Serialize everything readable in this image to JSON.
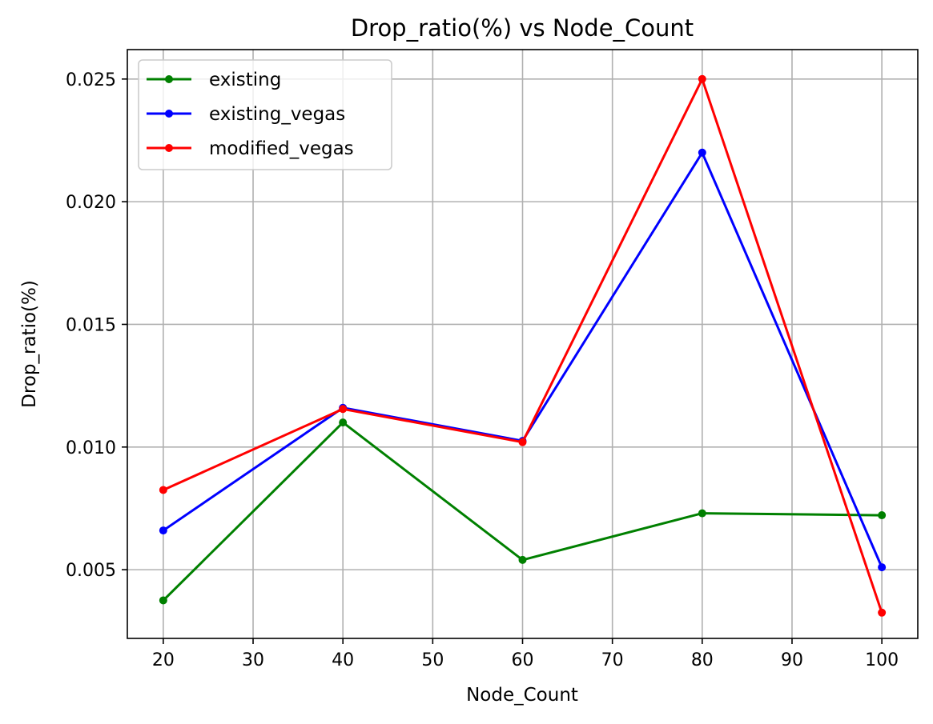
{
  "chart_data": {
    "type": "line",
    "title": "Drop_ratio(%) vs Node_Count",
    "xlabel": "Node_Count",
    "ylabel": "Drop_ratio(%)",
    "x": [
      20,
      40,
      60,
      80,
      100
    ],
    "xlim": [
      16,
      104
    ],
    "ylim": [
      0.0022,
      0.0262
    ],
    "xticks": [
      20,
      30,
      40,
      50,
      60,
      70,
      80,
      90,
      100
    ],
    "yticks": [
      0.005,
      0.01,
      0.015,
      0.02,
      0.025
    ],
    "ytick_labels": [
      "0.005",
      "0.010",
      "0.015",
      "0.020",
      "0.025"
    ],
    "grid": true,
    "legend_position": "top-left",
    "series": [
      {
        "name": "existing",
        "color": "#008000",
        "marker": "circle",
        "values": [
          0.00375,
          0.011,
          0.0054,
          0.0073,
          0.00722
        ]
      },
      {
        "name": "existing_vegas",
        "color": "#0000ff",
        "marker": "circle",
        "values": [
          0.0066,
          0.0116,
          0.01025,
          0.022,
          0.0051
        ]
      },
      {
        "name": "modified_vegas",
        "color": "#ff0000",
        "marker": "circle",
        "values": [
          0.00825,
          0.01155,
          0.0102,
          0.025,
          0.00325
        ]
      }
    ]
  }
}
